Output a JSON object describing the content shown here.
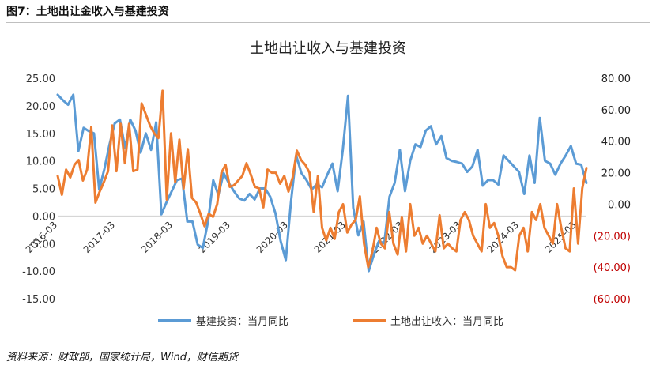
{
  "figure_title": "图7：土地出让金收入与基建投资",
  "source_note": "资料来源：财政部，国家统计局，Wind，财信期货",
  "chart_data": {
    "type": "line",
    "title": "土地出让收入与基建投资",
    "x_labels": [
      "2016-03",
      "2017-03",
      "2018-03",
      "2019-03",
      "2020-03",
      "2021-03",
      "2022-03",
      "2023-03",
      "2024-03",
      "2025-03"
    ],
    "left_axis": {
      "ylim": [
        -15,
        25
      ],
      "ticks": [
        "25.00",
        "20.00",
        "15.00",
        "10.00",
        "5.00",
        "0.00",
        "-5.00",
        "-10.00",
        "-15.00"
      ]
    },
    "right_axis": {
      "ylim": [
        -60,
        80
      ],
      "ticks": [
        "80.00",
        "60.00",
        "40.00",
        "20.00",
        "0.00",
        "(20.00)",
        "(40.00)",
        "(60.00)"
      ],
      "positive_color": "#222222",
      "negative_color": "#c00000"
    },
    "series": [
      {
        "name": "基建投资：当月同比",
        "axis": "left",
        "color": "#5b9bd5",
        "start": "2016-03",
        "values": [
          22.0,
          21.0,
          20.2,
          22.0,
          11.8,
          16.0,
          15.4,
          15.0,
          4.8,
          8.5,
          13.0,
          16.8,
          17.5,
          12.3,
          17.5,
          15.5,
          11.5,
          15.0,
          12.0,
          17.0,
          0.3,
          2.5,
          4.5,
          6.5,
          6.8,
          -1.0,
          -1.0,
          -5.2,
          -5.8,
          -1.0,
          6.5,
          3.8,
          7.8,
          6.0,
          4.5,
          3.2,
          2.8,
          4.0,
          3.0,
          5.0,
          5.0,
          3.5,
          0.5,
          -4.5,
          -8.0,
          2.5,
          11.0,
          7.8,
          6.5,
          4.8,
          5.8,
          5.2,
          7.5,
          9.5,
          4.5,
          12.0,
          21.8,
          1.5,
          -3.5,
          -1.0,
          -10.0,
          -7.0,
          -4.5,
          -5.0,
          3.5,
          6.0,
          12.0,
          4.5,
          10.0,
          13.0,
          12.5,
          15.5,
          16.3,
          13.0,
          14.5,
          10.5,
          10.0,
          9.8,
          9.5,
          8.0,
          9.0,
          12.0,
          5.5,
          6.5,
          6.5,
          5.7,
          11.0,
          10.0,
          9.0,
          8.0,
          4.0,
          11.0,
          6.0,
          17.8,
          10.0,
          9.5,
          7.5,
          9.5,
          11.0,
          12.7,
          9.5,
          9.3,
          6.0
        ]
      },
      {
        "name": "土地出让收入：当月同比",
        "axis": "right",
        "color": "#ed7d31",
        "start": "2016-03",
        "values": [
          18,
          6,
          22,
          17,
          25,
          28,
          15,
          22,
          49,
          1,
          8,
          14,
          21,
          50,
          21,
          51,
          26,
          51,
          21,
          22,
          64,
          57,
          50,
          45,
          42,
          72,
          3,
          45,
          14,
          41,
          10,
          35,
          4,
          1,
          -6,
          -14,
          -6,
          -8,
          0,
          20,
          25,
          11,
          12,
          15,
          18,
          26,
          19,
          11,
          10,
          -2,
          22,
          20,
          20,
          13,
          18,
          8,
          17,
          34,
          28,
          25,
          20,
          -5,
          18,
          -15,
          -23,
          -15,
          -22,
          -5,
          0,
          -18,
          -13,
          -10,
          5,
          -25,
          -40,
          -30,
          -15,
          -25,
          -28,
          -5,
          -25,
          -32,
          -8,
          -30,
          0,
          -20,
          -15,
          -25,
          -20,
          -25,
          -30,
          -7,
          -28,
          -25,
          -28,
          -30,
          -10,
          -5,
          -10,
          -20,
          -25,
          -30,
          0,
          -15,
          -12,
          -20,
          -33,
          -40,
          -40,
          -42,
          -20,
          -15,
          -30,
          -5,
          -10,
          0,
          -15,
          -20,
          -25,
          0,
          -15,
          -28,
          -30,
          10,
          -25,
          10,
          23
        ]
      }
    ],
    "legend_position": "bottom",
    "grid": false
  }
}
